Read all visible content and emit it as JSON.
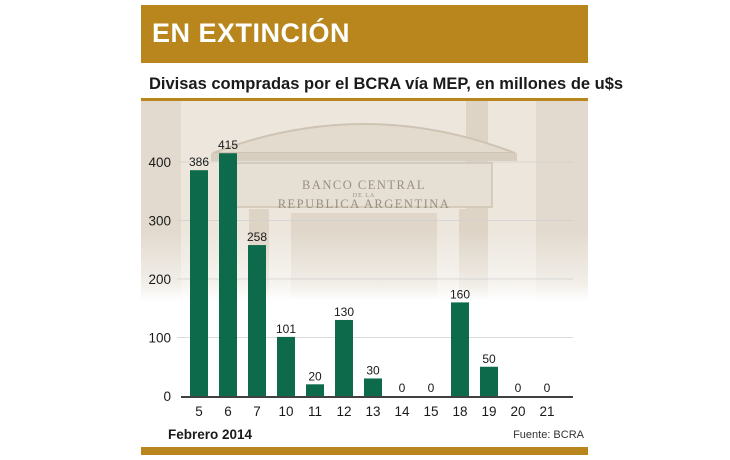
{
  "header": {
    "title": "EN EXTINCIÓN",
    "subtitle": "Divisas compradas por el BCRA vía MEP, en millones de u$s"
  },
  "building_inscription": [
    "BANCO CENTRAL",
    "DE LA",
    "REPUBLICA ARGENTINA"
  ],
  "footer": {
    "period": "Febrero 2014",
    "source": "Fuente: BCRA"
  },
  "colors": {
    "accent": "#b8861c",
    "bar": "#0d6b4c",
    "text": "#1a1a1a"
  },
  "chart_data": {
    "type": "bar",
    "categories": [
      "5",
      "6",
      "7",
      "10",
      "11",
      "12",
      "13",
      "14",
      "15",
      "18",
      "19",
      "20",
      "21"
    ],
    "values": [
      386,
      415,
      258,
      101,
      20,
      130,
      30,
      0,
      0,
      160,
      50,
      0,
      0
    ],
    "data_labels": [
      "386",
      "415",
      "258",
      "101",
      "20",
      "130",
      "30",
      "0",
      "0",
      "160",
      "50",
      "0",
      "0"
    ],
    "yticks": [
      "0",
      "100",
      "200",
      "300",
      "400"
    ],
    "ylim": [
      0,
      420
    ],
    "grid": "horizontal",
    "legend": "none"
  }
}
